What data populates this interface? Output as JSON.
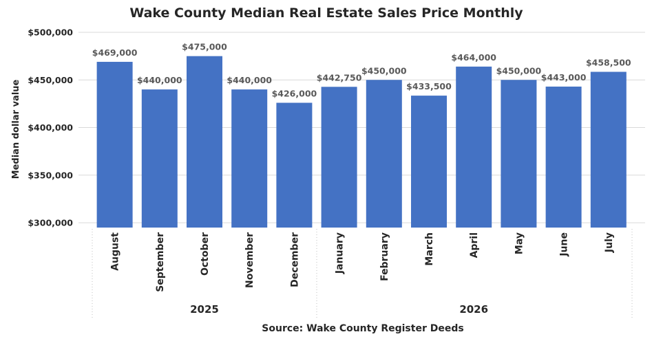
{
  "chart_data": {
    "type": "bar",
    "title": "Wake County Median Real Estate Sales Price Monthly",
    "ylabel": "Median dollar value",
    "source": "Source: Wake County Register Deeds",
    "categories": [
      "August",
      "September",
      "October",
      "November",
      "December",
      "January",
      "February",
      "March",
      "April",
      "May",
      "June",
      "July"
    ],
    "values": [
      469000,
      440000,
      475000,
      440000,
      426000,
      442750,
      450000,
      433500,
      464000,
      450000,
      443000,
      458500
    ],
    "data_labels": [
      "$469,000",
      "$440,000",
      "$475,000",
      "$440,000",
      "$426,000",
      "$442,750",
      "$450,000",
      "$433,500",
      "$464,000",
      "$450,000",
      "$443,000",
      "$458,500"
    ],
    "groups": [
      {
        "label": "2025",
        "count": 5
      },
      {
        "label": "2026",
        "count": 7
      }
    ],
    "ylim": [
      300000,
      500000
    ],
    "yticks": [
      300000,
      350000,
      400000,
      450000,
      500000
    ],
    "ytick_labels": [
      "$300,000",
      "$350,000",
      "$400,000",
      "$450,000",
      "$500,000"
    ],
    "grid": true,
    "colors": {
      "bar": "#4472C4",
      "grid": "#D9D9D9",
      "label": "#595959"
    }
  }
}
